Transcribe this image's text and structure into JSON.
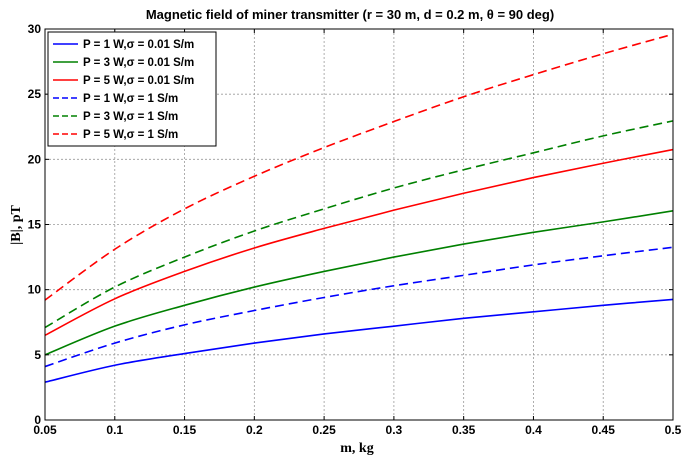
{
  "chart_data": {
    "type": "line",
    "title": "Magnetic field of miner transmitter (r = 30 m, d = 0.2 m, θ = 90 deg)",
    "xlabel": "m, kg",
    "ylabel": "|B|, pT",
    "xlim": [
      0.05,
      0.5
    ],
    "ylim": [
      0,
      30
    ],
    "grid": true,
    "legend_position": "top-left",
    "x_ticks": [
      "0.05",
      "0.1",
      "0.15",
      "0.2",
      "0.25",
      "0.3",
      "0.35",
      "0.4",
      "0.45",
      "0.5"
    ],
    "y_ticks": [
      "0",
      "5",
      "10",
      "15",
      "20",
      "25",
      "30"
    ],
    "x": [
      0.05,
      0.1,
      0.15,
      0.2,
      0.25,
      0.3,
      0.35,
      0.4,
      0.45,
      0.5
    ],
    "series": [
      {
        "name": "P = 1 W,σ = 0.01 S/m",
        "color": "#0000ff",
        "dash": "solid",
        "values": [
          2.9,
          4.2,
          5.1,
          5.9,
          6.6,
          7.2,
          7.8,
          8.3,
          8.8,
          9.25
        ]
      },
      {
        "name": "P = 3 W,σ = 0.01 S/m",
        "color": "#008000",
        "dash": "solid",
        "values": [
          5.0,
          7.2,
          8.8,
          10.2,
          11.4,
          12.5,
          13.5,
          14.4,
          15.2,
          16.05
        ]
      },
      {
        "name": "P = 5 W,σ = 0.01 S/m",
        "color": "#ff0000",
        "dash": "solid",
        "values": [
          6.5,
          9.3,
          11.4,
          13.2,
          14.7,
          16.1,
          17.4,
          18.6,
          19.7,
          20.75
        ]
      },
      {
        "name": "P = 1 W,σ = 1 S/m",
        "color": "#0000ff",
        "dash": "dashed",
        "values": [
          4.1,
          5.9,
          7.3,
          8.4,
          9.4,
          10.3,
          11.1,
          11.9,
          12.6,
          13.25
        ]
      },
      {
        "name": "P = 3 W,σ = 1 S/m",
        "color": "#008000",
        "dash": "dashed",
        "values": [
          7.1,
          10.2,
          12.5,
          14.5,
          16.2,
          17.8,
          19.2,
          20.5,
          21.8,
          22.95
        ]
      },
      {
        "name": "P = 5 W,σ = 1 S/m",
        "color": "#ff0000",
        "dash": "dashed",
        "values": [
          9.2,
          13.1,
          16.2,
          18.7,
          20.9,
          22.9,
          24.8,
          26.5,
          28.1,
          29.6
        ]
      }
    ]
  }
}
